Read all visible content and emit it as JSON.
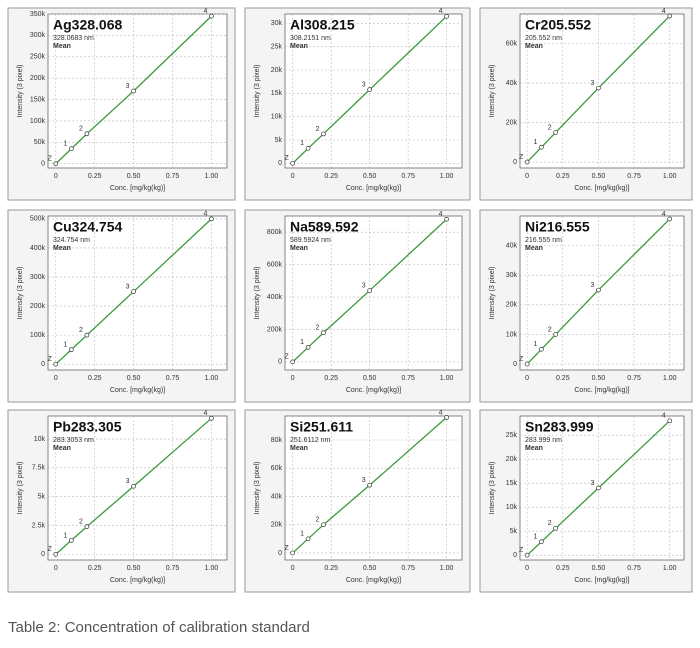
{
  "chart_data": [
    {
      "type": "scatter",
      "title": "Ag328.068",
      "subtitle": "328.0683 nm",
      "note": "Mean",
      "x_label": "Conc. [mg/kg(kg)]",
      "y_label": "Intensity (3 pixel)",
      "color": "#3a9a3a",
      "x": [
        0,
        0.1,
        0.2,
        0.5,
        1.0
      ],
      "values": [
        0,
        35000,
        70000,
        170000,
        345000
      ],
      "point_labels": [
        "Z",
        "1",
        "2",
        "3",
        "4"
      ],
      "xlim": [
        -0.05,
        1.1
      ],
      "xticks": [
        0,
        0.25,
        {
          "value": 0.5,
          "label": "0.50"
        },
        0.75,
        {
          "value": 1.0,
          "label": "1.00"
        }
      ],
      "ylim": [
        -10000,
        350000
      ],
      "yticks": [
        0,
        {
          "value": 50000,
          "label": "50k"
        },
        {
          "value": 100000,
          "label": "100k"
        },
        {
          "value": 150000,
          "label": "150k"
        },
        {
          "value": 200000,
          "label": "200k"
        },
        {
          "value": 250000,
          "label": "250k"
        },
        {
          "value": 300000,
          "label": "300k"
        },
        {
          "value": 350000,
          "label": "350k"
        }
      ],
      "grid": true
    },
    {
      "type": "scatter",
      "title": "Al308.215",
      "subtitle": "308.2151 nm",
      "note": "Mean",
      "x_label": "Conc. [mg/kg(kg)]",
      "y_label": "Intensity (3 pixel)",
      "color": "#3a9a3a",
      "x": [
        0,
        0.1,
        0.2,
        0.5,
        1.0
      ],
      "values": [
        0,
        3200,
        6300,
        15800,
        31500
      ],
      "point_labels": [
        "Z",
        "1",
        "2",
        "3",
        "4"
      ],
      "xlim": [
        -0.05,
        1.1
      ],
      "xticks": [
        0,
        0.25,
        {
          "value": 0.5,
          "label": "0.50"
        },
        0.75,
        {
          "value": 1.0,
          "label": "1.00"
        }
      ],
      "ylim": [
        -1000,
        32000
      ],
      "yticks": [
        0,
        {
          "value": 5000,
          "label": "5k"
        },
        {
          "value": 10000,
          "label": "10k"
        },
        {
          "value": 15000,
          "label": "15k"
        },
        {
          "value": 20000,
          "label": "20k"
        },
        {
          "value": 25000,
          "label": "25k"
        },
        {
          "value": 30000,
          "label": "30k"
        }
      ],
      "grid": true
    },
    {
      "type": "scatter",
      "title": "Cr205.552",
      "subtitle": "205.552 nm",
      "note": "Mean",
      "x_label": "Conc. [mg/kg(kg)]",
      "y_label": "Intensity (3 pixel)",
      "color": "#3a9a3a",
      "x": [
        0,
        0.1,
        0.2,
        0.5,
        1.0
      ],
      "values": [
        0,
        7500,
        15000,
        37500,
        74000
      ],
      "point_labels": [
        "Z",
        "1",
        "2",
        "3",
        "4"
      ],
      "xlim": [
        -0.05,
        1.1
      ],
      "xticks": [
        0,
        0.25,
        {
          "value": 0.5,
          "label": "0.50"
        },
        0.75,
        {
          "value": 1.0,
          "label": "1.00"
        }
      ],
      "ylim": [
        -3000,
        75000
      ],
      "yticks": [
        0,
        {
          "value": 20000,
          "label": "20k"
        },
        {
          "value": 40000,
          "label": "40k"
        },
        {
          "value": 60000,
          "label": "60k"
        }
      ],
      "grid": true
    },
    {
      "type": "scatter",
      "title": "Cu324.754",
      "subtitle": "324.754 nm",
      "note": "Mean",
      "x_label": "Conc. [mg/kg(kg)]",
      "y_label": "Intensity (3 pixel)",
      "color": "#3a9a3a",
      "x": [
        0,
        0.1,
        0.2,
        0.5,
        1.0
      ],
      "values": [
        0,
        50000,
        100000,
        250000,
        500000
      ],
      "point_labels": [
        "Z",
        "1",
        "2",
        "3",
        "4"
      ],
      "xlim": [
        -0.05,
        1.1
      ],
      "xticks": [
        0,
        0.25,
        {
          "value": 0.5,
          "label": "0.50"
        },
        0.75,
        {
          "value": 1.0,
          "label": "1.00"
        }
      ],
      "ylim": [
        -20000,
        510000
      ],
      "yticks": [
        0,
        {
          "value": 100000,
          "label": "100k"
        },
        {
          "value": 200000,
          "label": "200k"
        },
        {
          "value": 300000,
          "label": "300k"
        },
        {
          "value": 400000,
          "label": "400k"
        },
        {
          "value": 500000,
          "label": "500k"
        }
      ],
      "grid": true
    },
    {
      "type": "scatter",
      "title": "Na589.592",
      "subtitle": "589.5924 nm",
      "note": "Mean",
      "x_label": "Conc. [mg/kg(kg)]",
      "y_label": "Intensity (3 pixel)",
      "color": "#3a9a3a",
      "x": [
        0,
        0.1,
        0.2,
        0.5,
        1.0
      ],
      "values": [
        0,
        90000,
        180000,
        440000,
        880000
      ],
      "point_labels": [
        "Z",
        "1",
        "2",
        "3",
        "4"
      ],
      "xlim": [
        -0.05,
        1.1
      ],
      "xticks": [
        0,
        0.25,
        {
          "value": 0.5,
          "label": "0.50"
        },
        0.75,
        {
          "value": 1.0,
          "label": "1.00"
        }
      ],
      "ylim": [
        -50000,
        900000
      ],
      "yticks": [
        0,
        {
          "value": 200000,
          "label": "200k"
        },
        {
          "value": 400000,
          "label": "400k"
        },
        {
          "value": 600000,
          "label": "600k"
        },
        {
          "value": 800000,
          "label": "800k"
        }
      ],
      "grid": true
    },
    {
      "type": "scatter",
      "title": "Ni216.555",
      "subtitle": "216.555 nm",
      "note": "Mean",
      "x_label": "Conc. [mg/kg(kg)]",
      "y_label": "Intensity (3 pixel)",
      "color": "#3a9a3a",
      "x": [
        0,
        0.1,
        0.2,
        0.5,
        1.0
      ],
      "values": [
        0,
        5000,
        10000,
        25000,
        49000
      ],
      "point_labels": [
        "Z",
        "1",
        "2",
        "3",
        "4"
      ],
      "xlim": [
        -0.05,
        1.1
      ],
      "xticks": [
        0,
        0.25,
        {
          "value": 0.5,
          "label": "0.50"
        },
        0.75,
        {
          "value": 1.0,
          "label": "1.00"
        }
      ],
      "ylim": [
        -2000,
        50000
      ],
      "yticks": [
        0,
        {
          "value": 10000,
          "label": "10k"
        },
        {
          "value": 20000,
          "label": "20k"
        },
        {
          "value": 30000,
          "label": "30k"
        },
        {
          "value": 40000,
          "label": "40k"
        }
      ],
      "grid": true
    },
    {
      "type": "scatter",
      "title": "Pb283.305",
      "subtitle": "283.3053 nm",
      "note": "Mean",
      "x_label": "Conc. [mg/kg(kg)]",
      "y_label": "Intensity (3 pixel)",
      "color": "#3a9a3a",
      "x": [
        0,
        0.1,
        0.2,
        0.5,
        1.0
      ],
      "values": [
        0,
        1200,
        2400,
        5900,
        11800
      ],
      "point_labels": [
        "Z",
        "1",
        "2",
        "3",
        "4"
      ],
      "xlim": [
        -0.05,
        1.1
      ],
      "xticks": [
        0,
        0.25,
        {
          "value": 0.5,
          "label": "0.50"
        },
        0.75,
        {
          "value": 1.0,
          "label": "1.00"
        }
      ],
      "ylim": [
        -500,
        12000
      ],
      "yticks": [
        0,
        {
          "value": 2500,
          "label": "2.5k"
        },
        {
          "value": 5000,
          "label": "5k"
        },
        {
          "value": 7500,
          "label": "7.5k"
        },
        {
          "value": 10000,
          "label": "10k"
        }
      ],
      "grid": true
    },
    {
      "type": "scatter",
      "title": "Si251.611",
      "subtitle": "251.6112 nm",
      "note": "Mean",
      "x_label": "Conc. [mg/kg(kg)]",
      "y_label": "Intensity (3 pixel)",
      "color": "#3a9a3a",
      "x": [
        0,
        0.1,
        0.2,
        0.5,
        1.0
      ],
      "values": [
        0,
        10000,
        20000,
        48000,
        96000
      ],
      "point_labels": [
        "Z",
        "1",
        "2",
        "3",
        "4"
      ],
      "xlim": [
        -0.05,
        1.1
      ],
      "xticks": [
        0,
        0.25,
        {
          "value": 0.5,
          "label": "0.50"
        },
        0.75,
        {
          "value": 1.0,
          "label": "1.00"
        }
      ],
      "ylim": [
        -5000,
        97000
      ],
      "yticks": [
        0,
        {
          "value": 20000,
          "label": "20k"
        },
        {
          "value": 40000,
          "label": "40k"
        },
        {
          "value": 60000,
          "label": "60k"
        },
        {
          "value": 80000,
          "label": "80k"
        }
      ],
      "grid": true
    },
    {
      "type": "scatter",
      "title": "Sn283.999",
      "subtitle": "283.999 nm",
      "note": "Mean",
      "x_label": "Conc. [mg/kg(kg)]",
      "y_label": "Intensity (3 pixel)",
      "color": "#3a9a3a",
      "x": [
        0,
        0.1,
        0.2,
        0.5,
        1.0
      ],
      "values": [
        0,
        2800,
        5600,
        14000,
        28000
      ],
      "point_labels": [
        "Z",
        "1",
        "2",
        "3",
        "4"
      ],
      "xlim": [
        -0.05,
        1.1
      ],
      "xticks": [
        0,
        0.25,
        {
          "value": 0.5,
          "label": "0.50"
        },
        0.75,
        {
          "value": 1.0,
          "label": "1.00"
        }
      ],
      "ylim": [
        -1000,
        29000
      ],
      "yticks": [
        0,
        {
          "value": 5000,
          "label": "5k"
        },
        {
          "value": 10000,
          "label": "10k"
        },
        {
          "value": 15000,
          "label": "15k"
        },
        {
          "value": 20000,
          "label": "20k"
        },
        {
          "value": 25000,
          "label": "25k"
        }
      ],
      "grid": true
    }
  ],
  "caption": "Table 2: Concentration of calibration standard"
}
